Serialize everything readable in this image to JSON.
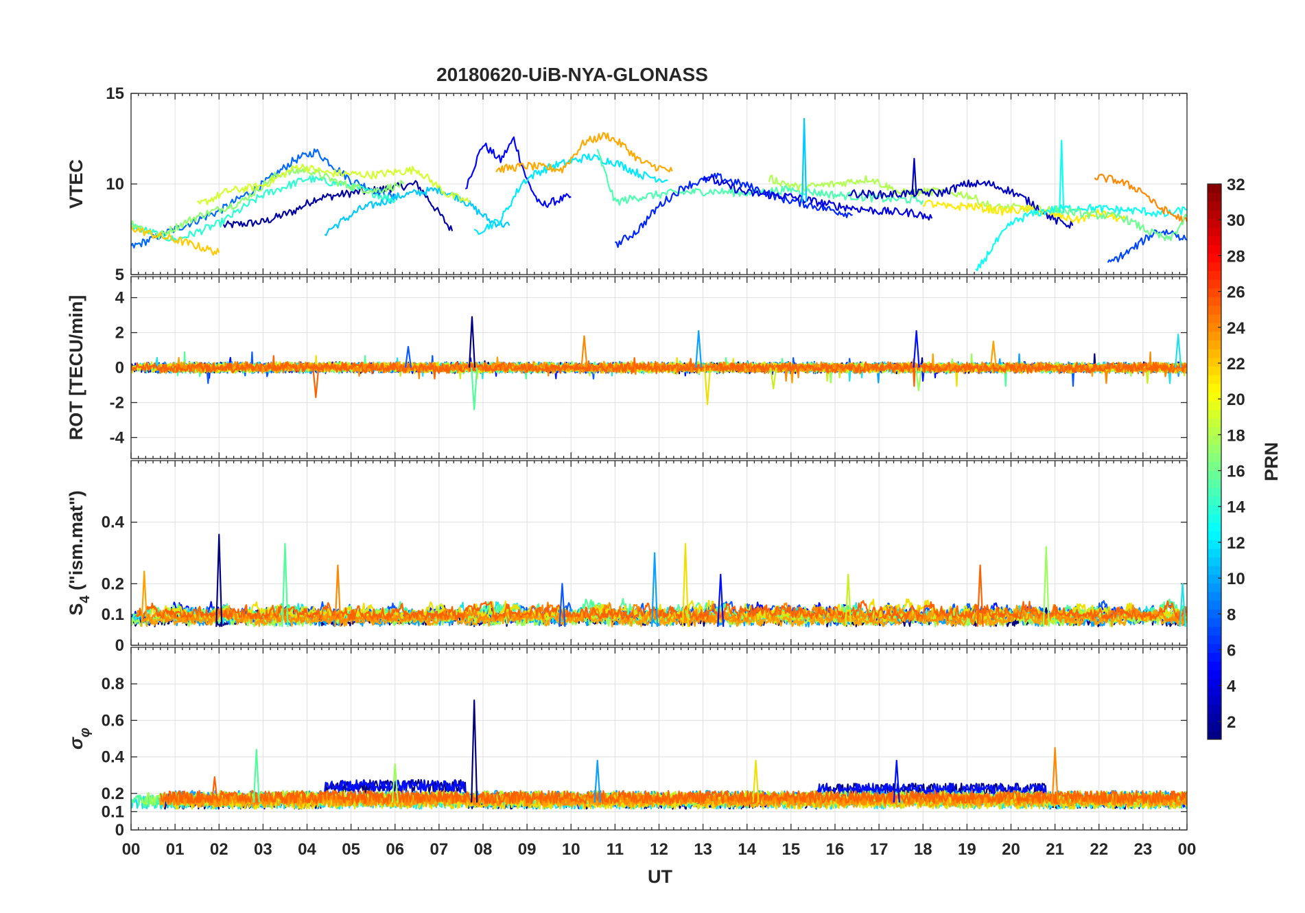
{
  "chart_data": {
    "type": "line",
    "title": "20180620-UiB-NYA-GLONASS",
    "xlabel": "UT",
    "x_range_hours": [
      0,
      24
    ],
    "x_tick_labels": [
      "00",
      "01",
      "02",
      "03",
      "04",
      "05",
      "06",
      "07",
      "08",
      "09",
      "10",
      "11",
      "12",
      "13",
      "14",
      "15",
      "16",
      "17",
      "18",
      "19",
      "20",
      "21",
      "22",
      "23",
      "00"
    ],
    "grid": true,
    "colorbar": {
      "label": "PRN",
      "colormap": "jet",
      "range": [
        1,
        32
      ],
      "tick_labels": [
        "2",
        "4",
        "6",
        "8",
        "10",
        "12",
        "14",
        "16",
        "18",
        "20",
        "22",
        "24",
        "26",
        "28",
        "30",
        "32"
      ],
      "placement": "right"
    },
    "series_colors": [
      "#000080",
      "#0010ff",
      "#0a58ff",
      "#0aa0ff",
      "#20e0e8",
      "#50ff9a",
      "#9aff58",
      "#c8f020",
      "#f0e000",
      "#ffa000",
      "#ff8800",
      "#ff6000"
    ],
    "panels": [
      {
        "id": "vtec",
        "ylabel": "VTEC",
        "ylim": [
          5,
          15
        ],
        "y_ticks": [
          5,
          10,
          15
        ],
        "y_tick_labels": [
          "5",
          "10",
          "15"
        ],
        "series": [
          {
            "prn": 2,
            "points": [
              [
                2.1,
                7.7
              ],
              [
                3.0,
                7.9
              ],
              [
                3.7,
                8.5
              ],
              [
                4.2,
                9.2
              ],
              [
                5.0,
                9.5
              ],
              [
                5.7,
                9.7
              ],
              [
                6.5,
                10.0
              ],
              [
                7.3,
                7.4
              ]
            ]
          },
          {
            "prn": 5,
            "points": [
              [
                7.6,
                9.8
              ],
              [
                8.0,
                12.2
              ],
              [
                8.4,
                11.3
              ],
              [
                8.7,
                12.5
              ],
              [
                9.0,
                10.2
              ],
              [
                9.3,
                8.8
              ],
              [
                9.7,
                9.1
              ],
              [
                10.0,
                9.3
              ]
            ]
          },
          {
            "prn": 8,
            "points": [
              [
                0.0,
                6.5
              ],
              [
                1.0,
                7.5
              ],
              [
                2.0,
                8.5
              ],
              [
                3.0,
                10.0
              ],
              [
                3.7,
                11.3
              ],
              [
                4.2,
                11.8
              ],
              [
                5.0,
                10.2
              ],
              [
                6.0,
                9.2
              ]
            ]
          },
          {
            "prn": 11,
            "points": [
              [
                4.4,
                7.3
              ],
              [
                5.2,
                8.6
              ],
              [
                6.2,
                9.4
              ],
              [
                7.0,
                9.7
              ],
              [
                7.5,
                9.2
              ],
              [
                8.2,
                7.9
              ],
              [
                8.6,
                7.7
              ]
            ]
          },
          {
            "prn": 14,
            "points": [
              [
                0.0,
                7.7
              ],
              [
                1.0,
                6.9
              ],
              [
                2.0,
                7.8
              ],
              [
                3.0,
                9.4
              ],
              [
                4.0,
                10.3
              ],
              [
                4.8,
                10.0
              ],
              [
                5.5,
                9.5
              ],
              [
                6.0,
                9.1
              ]
            ]
          },
          {
            "prn": 17,
            "points": [
              [
                0.0,
                7.9
              ],
              [
                0.6,
                7.1
              ],
              [
                1.5,
                8.2
              ],
              [
                2.5,
                9.0
              ],
              [
                3.3,
                10.5
              ],
              [
                4.0,
                10.8
              ],
              [
                4.8,
                10.0
              ],
              [
                5.5,
                9.6
              ],
              [
                6.2,
                10.0
              ]
            ]
          },
          {
            "prn": 19,
            "points": [
              [
                1.5,
                8.8
              ],
              [
                2.2,
                9.6
              ],
              [
                3.0,
                9.9
              ],
              [
                3.8,
                11.0
              ],
              [
                4.5,
                10.6
              ],
              [
                5.5,
                10.5
              ],
              [
                6.5,
                10.8
              ],
              [
                7.2,
                9.4
              ],
              [
                7.7,
                9.0
              ]
            ]
          },
          {
            "prn": 22,
            "points": [
              [
                0.0,
                7.6
              ],
              [
                0.5,
                7.2
              ],
              [
                1.2,
                6.8
              ],
              [
                2.0,
                6.2
              ]
            ]
          },
          {
            "prn": 12,
            "points": [
              [
                7.8,
                7.3
              ],
              [
                8.4,
                8.0
              ],
              [
                8.9,
                10.1
              ],
              [
                9.2,
                10.6
              ],
              [
                9.6,
                11.0
              ],
              [
                10.4,
                11.5
              ],
              [
                11.0,
                11.2
              ],
              [
                11.6,
                10.5
              ],
              [
                12.2,
                10.2
              ]
            ]
          },
          {
            "prn": 23,
            "points": [
              [
                8.3,
                10.8
              ],
              [
                9.0,
                11.0
              ],
              [
                9.8,
                10.8
              ],
              [
                10.3,
                12.3
              ],
              [
                10.8,
                12.7
              ],
              [
                11.2,
                12.1
              ],
              [
                11.6,
                11.2
              ],
              [
                12.0,
                10.9
              ],
              [
                12.3,
                10.7
              ]
            ]
          },
          {
            "prn": 15,
            "points": [
              [
                10.6,
                11.8
              ],
              [
                11.0,
                9.0
              ],
              [
                11.6,
                9.3
              ],
              [
                12.3,
                9.5
              ],
              [
                13.2,
                9.6
              ],
              [
                14.0,
                9.5
              ],
              [
                15.0,
                9.7
              ],
              [
                16.0,
                9.4
              ],
              [
                17.0,
                9.2
              ],
              [
                18.0,
                9.1
              ]
            ]
          },
          {
            "prn": 6,
            "points": [
              [
                11.0,
                6.6
              ],
              [
                11.5,
                7.4
              ],
              [
                12.0,
                8.8
              ],
              [
                12.6,
                9.9
              ],
              [
                13.3,
                10.4
              ],
              [
                14.0,
                9.9
              ],
              [
                14.8,
                9.2
              ],
              [
                15.5,
                8.8
              ],
              [
                16.4,
                8.3
              ]
            ]
          },
          {
            "prn": 4,
            "points": [
              [
                13.0,
                10.4
              ],
              [
                14.0,
                9.5
              ],
              [
                15.0,
                9.3
              ],
              [
                16.0,
                8.8
              ],
              [
                17.0,
                8.5
              ],
              [
                17.8,
                8.4
              ],
              [
                18.2,
                8.1
              ]
            ]
          },
          {
            "prn": 18,
            "points": [
              [
                14.5,
                10.3
              ],
              [
                15.2,
                9.8
              ],
              [
                16.0,
                10.0
              ],
              [
                16.8,
                10.3
              ],
              [
                17.5,
                9.5
              ],
              [
                18.3,
                9.6
              ],
              [
                19.0,
                9.4
              ],
              [
                19.6,
                8.7
              ],
              [
                20.2,
                8.7
              ],
              [
                21.0,
                8.5
              ]
            ]
          },
          {
            "prn": 3,
            "points": [
              [
                16.3,
                9.5
              ],
              [
                17.0,
                9.4
              ],
              [
                17.8,
                9.5
              ],
              [
                18.4,
                9.5
              ],
              [
                19.0,
                10.0
              ],
              [
                19.5,
                10.0
              ],
              [
                20.0,
                9.6
              ],
              [
                20.5,
                8.9
              ],
              [
                21.0,
                8.0
              ],
              [
                21.4,
                7.7
              ]
            ]
          },
          {
            "prn": 21,
            "points": [
              [
                18.0,
                9.0
              ],
              [
                18.6,
                8.7
              ],
              [
                19.0,
                8.8
              ],
              [
                19.8,
                8.5
              ],
              [
                20.4,
                8.6
              ],
              [
                21.0,
                8.3
              ],
              [
                21.5,
                8.0
              ],
              [
                22.0,
                8.4
              ],
              [
                22.6,
                8.0
              ]
            ]
          },
          {
            "prn": 13,
            "points": [
              [
                19.2,
                5.1
              ],
              [
                19.6,
                6.6
              ],
              [
                20.0,
                7.8
              ],
              [
                20.4,
                8.3
              ],
              [
                21.0,
                8.6
              ],
              [
                21.6,
                8.7
              ],
              [
                22.3,
                8.6
              ],
              [
                23.0,
                8.5
              ],
              [
                23.5,
                8.3
              ],
              [
                24.0,
                8.6
              ]
            ]
          },
          {
            "prn": 24,
            "points": [
              [
                21.9,
                10.4
              ],
              [
                22.4,
                10.2
              ],
              [
                23.0,
                9.6
              ],
              [
                23.3,
                8.8
              ],
              [
                23.6,
                8.4
              ],
              [
                24.0,
                7.9
              ]
            ]
          },
          {
            "prn": 7,
            "points": [
              [
                22.2,
                5.6
              ],
              [
                22.7,
                6.3
              ],
              [
                23.3,
                7.4
              ],
              [
                23.7,
                7.3
              ],
              [
                24.0,
                6.9
              ]
            ]
          },
          {
            "prn": 16,
            "points": [
              [
                21.0,
                8.6
              ],
              [
                21.8,
                8.3
              ],
              [
                22.5,
                8.2
              ],
              [
                23.2,
                7.3
              ],
              [
                23.6,
                6.9
              ],
              [
                24.0,
                8.2
              ]
            ]
          }
        ],
        "spikes": [
          {
            "prn": 11,
            "t": 15.3,
            "base": 9.0,
            "peak": 13.6
          },
          {
            "prn": 13,
            "t": 21.15,
            "base": 8.4,
            "peak": 12.4
          },
          {
            "prn": 3,
            "t": 17.8,
            "base": 9.4,
            "peak": 11.4
          }
        ]
      },
      {
        "id": "rot",
        "ylabel": "ROT [TECU/min]",
        "ylim": [
          -5.2,
          5.2
        ],
        "y_ticks": [
          -4,
          -2,
          0,
          2,
          4
        ],
        "y_tick_labels": [
          "-4",
          "-2",
          "0",
          "2",
          "4"
        ],
        "noise_level": 0.25,
        "spikes": [
          {
            "t": 7.75,
            "value": 2.9
          },
          {
            "t": 7.8,
            "value": -2.4
          },
          {
            "t": 10.3,
            "value": 1.8
          },
          {
            "t": 12.9,
            "value": 2.1
          },
          {
            "t": 13.1,
            "value": -2.1
          },
          {
            "t": 17.85,
            "value": 2.1
          },
          {
            "t": 17.9,
            "value": -1.3
          },
          {
            "t": 4.2,
            "value": -1.7
          },
          {
            "t": 23.8,
            "value": 1.9
          },
          {
            "t": 19.6,
            "value": 1.5
          },
          {
            "t": 6.3,
            "value": 1.2
          },
          {
            "t": 14.6,
            "value": -1.2
          }
        ]
      },
      {
        "id": "s4",
        "ylabel": "S4 (\"ism.mat\")",
        "ylabel_main": "S",
        "ylabel_sub": "4",
        "ylabel_rest": " (\"ism.mat\")",
        "ylim": [
          0,
          0.6
        ],
        "y_ticks": [
          0,
          0.1,
          0.2,
          0.4
        ],
        "y_tick_labels": [
          "0",
          "0.1",
          "0.2",
          "0.4"
        ],
        "baseline": 0.06,
        "spikes": [
          {
            "t": 2.0,
            "value": 0.36
          },
          {
            "t": 3.5,
            "value": 0.33
          },
          {
            "t": 4.7,
            "value": 0.26
          },
          {
            "t": 11.9,
            "value": 0.3
          },
          {
            "t": 12.6,
            "value": 0.33
          },
          {
            "t": 13.4,
            "value": 0.23
          },
          {
            "t": 20.8,
            "value": 0.32
          },
          {
            "t": 19.3,
            "value": 0.26
          },
          {
            "t": 23.9,
            "value": 0.2
          },
          {
            "t": 0.3,
            "value": 0.24
          },
          {
            "t": 9.8,
            "value": 0.2
          },
          {
            "t": 16.3,
            "value": 0.23
          }
        ]
      },
      {
        "id": "sigma_phi",
        "ylabel": "σφ",
        "ylabel_main": "σ",
        "ylabel_sub": "φ",
        "ylim": [
          0,
          1
        ],
        "y_ticks": [
          0,
          0.1,
          0.2,
          0.4,
          0.6,
          0.8
        ],
        "y_tick_labels": [
          "0",
          "0.1",
          "0.2",
          "0.4",
          "0.6",
          "0.8"
        ],
        "baseline": 0.15,
        "spikes": [
          {
            "t": 7.8,
            "value": 0.71
          },
          {
            "t": 2.85,
            "value": 0.44
          },
          {
            "t": 21.0,
            "value": 0.45
          },
          {
            "t": 10.6,
            "value": 0.38
          },
          {
            "t": 14.2,
            "value": 0.38
          },
          {
            "t": 17.4,
            "value": 0.38
          },
          {
            "t": 6.0,
            "value": 0.36
          },
          {
            "t": 1.9,
            "value": 0.29
          }
        ],
        "elevated_band": [
          {
            "from": 4.4,
            "to": 7.6,
            "level": 0.24
          },
          {
            "from": 15.6,
            "to": 20.8,
            "level": 0.22
          }
        ]
      }
    ]
  }
}
